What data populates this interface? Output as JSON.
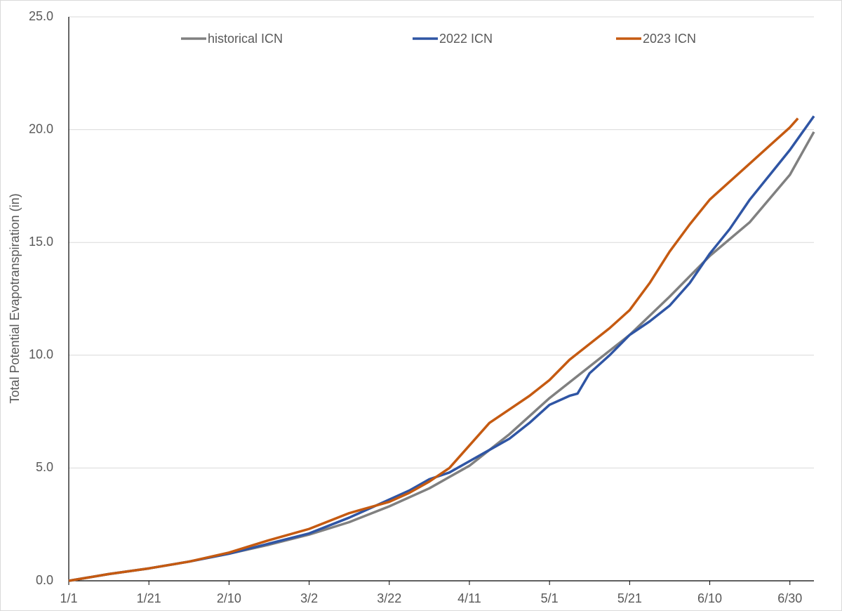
{
  "chart_data": {
    "type": "line",
    "y_label": "Total Potential Evapotranspiration (in)",
    "xlim": [
      0,
      186
    ],
    "xticks": [
      {
        "value": 0,
        "label": "1/1"
      },
      {
        "value": 20,
        "label": "1/21"
      },
      {
        "value": 40,
        "label": "2/10"
      },
      {
        "value": 60,
        "label": "3/2"
      },
      {
        "value": 80,
        "label": "3/22"
      },
      {
        "value": 100,
        "label": "4/11"
      },
      {
        "value": 120,
        "label": "5/1"
      },
      {
        "value": 140,
        "label": "5/21"
      },
      {
        "value": 160,
        "label": "6/10"
      },
      {
        "value": 180,
        "label": "6/30"
      }
    ],
    "ylim": [
      0,
      25
    ],
    "yticks": [
      {
        "value": 0,
        "label": "0.0"
      },
      {
        "value": 5,
        "label": "5.0"
      },
      {
        "value": 10,
        "label": "10.0"
      },
      {
        "value": 15,
        "label": "15.0"
      },
      {
        "value": 20,
        "label": "20.0"
      },
      {
        "value": 25,
        "label": "25.0"
      }
    ],
    "grid": true,
    "legend": "top",
    "series": [
      {
        "name": "historical ICN",
        "color": "#808080",
        "x": [
          0,
          10,
          20,
          30,
          40,
          50,
          60,
          70,
          80,
          90,
          100,
          110,
          120,
          130,
          140,
          150,
          160,
          170,
          180,
          186
        ],
        "values": [
          0,
          0.3,
          0.55,
          0.85,
          1.2,
          1.6,
          2.05,
          2.6,
          3.3,
          4.1,
          5.1,
          6.5,
          8.1,
          9.5,
          10.9,
          12.6,
          14.4,
          15.9,
          18.0,
          19.9
        ]
      },
      {
        "name": "2022 ICN",
        "color": "#2f55a4",
        "x": [
          0,
          10,
          20,
          30,
          40,
          50,
          60,
          70,
          80,
          85,
          90,
          95,
          100,
          105,
          110,
          115,
          120,
          125,
          127,
          130,
          135,
          140,
          145,
          150,
          155,
          160,
          165,
          170,
          175,
          180,
          186
        ],
        "values": [
          0,
          0.3,
          0.55,
          0.85,
          1.2,
          1.65,
          2.1,
          2.8,
          3.6,
          4.0,
          4.5,
          4.8,
          5.3,
          5.8,
          6.3,
          7.0,
          7.8,
          8.2,
          8.3,
          9.2,
          10.0,
          10.9,
          11.5,
          12.2,
          13.2,
          14.5,
          15.6,
          16.9,
          18.0,
          19.1,
          20.6
        ]
      },
      {
        "name": "2023 ICN",
        "color": "#c55a11",
        "x": [
          0,
          10,
          20,
          30,
          40,
          50,
          60,
          70,
          80,
          85,
          90,
          95,
          100,
          105,
          110,
          115,
          120,
          125,
          130,
          135,
          140,
          145,
          150,
          155,
          160,
          165,
          170,
          175,
          180,
          182
        ],
        "values": [
          0,
          0.3,
          0.55,
          0.85,
          1.25,
          1.8,
          2.3,
          3.0,
          3.5,
          3.9,
          4.4,
          5.0,
          6.0,
          7.0,
          7.6,
          8.2,
          8.9,
          9.8,
          10.5,
          11.2,
          12.0,
          13.2,
          14.6,
          15.8,
          16.9,
          17.7,
          18.5,
          19.3,
          20.1,
          20.5
        ]
      }
    ]
  }
}
